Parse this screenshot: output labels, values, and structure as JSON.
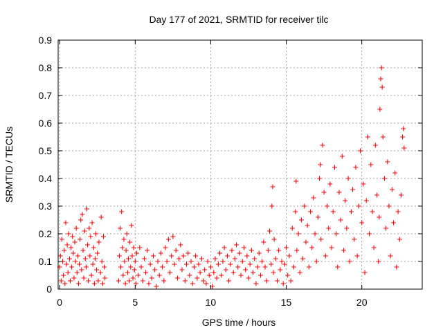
{
  "chart_data": {
    "type": "scatter",
    "title": "Day 177 of 2021, SRMTID for receiver tilc",
    "xlabel": "GPS time / hours",
    "ylabel": "SRMTID / TECUs",
    "xlim": [
      -0.1,
      24.0
    ],
    "ylim": [
      0,
      0.9
    ],
    "xticks": [
      0,
      5,
      10,
      15,
      20
    ],
    "xtick_labels": [
      "0",
      "5",
      "10",
      "15",
      "20"
    ],
    "yticks": [
      0,
      0.1,
      0.2,
      0.3,
      0.4,
      0.5,
      0.6,
      0.7,
      0.8,
      0.9
    ],
    "ytick_labels": [
      "0",
      "0.1",
      "0.2",
      "0.3",
      "0.4",
      "0.5",
      "0.6",
      "0.7",
      "0.8",
      "0.9"
    ],
    "grid": true,
    "marker": "+",
    "color": "#ff0000",
    "series": [
      {
        "points": [
          [
            0.0,
            0.08
          ],
          [
            0.05,
            0.12
          ],
          [
            0.1,
            0.03
          ],
          [
            0.15,
            0.18
          ],
          [
            0.2,
            0.1
          ],
          [
            0.25,
            0.05
          ],
          [
            0.3,
            0.14
          ],
          [
            0.35,
            0.02
          ],
          [
            0.4,
            0.24
          ],
          [
            0.45,
            0.09
          ],
          [
            0.5,
            0.16
          ],
          [
            0.55,
            0.06
          ],
          [
            0.6,
            0.2
          ],
          [
            0.65,
            0.11
          ],
          [
            0.7,
            0.03
          ],
          [
            0.75,
            0.15
          ],
          [
            0.8,
            0.08
          ],
          [
            0.85,
            0.19
          ],
          [
            0.9,
            0.13
          ],
          [
            0.95,
            0.04
          ],
          [
            1.0,
            0.17
          ],
          [
            1.05,
            0.1
          ],
          [
            1.1,
            0.22
          ],
          [
            1.15,
            0.06
          ],
          [
            1.2,
            0.12
          ],
          [
            1.25,
            0.02
          ],
          [
            1.3,
            0.09
          ],
          [
            1.35,
            0.18
          ],
          [
            1.4,
            0.25
          ],
          [
            1.45,
            0.07
          ],
          [
            1.5,
            0.27
          ],
          [
            1.55,
            0.14
          ],
          [
            1.6,
            0.04
          ],
          [
            1.65,
            0.21
          ],
          [
            1.7,
            0.11
          ],
          [
            1.75,
            0.08
          ],
          [
            1.8,
            0.29
          ],
          [
            1.85,
            0.16
          ],
          [
            1.9,
            0.03
          ],
          [
            1.95,
            0.22
          ],
          [
            2.0,
            0.12
          ],
          [
            2.05,
            0.19
          ],
          [
            2.1,
            0.05
          ],
          [
            2.15,
            0.24
          ],
          [
            2.2,
            0.09
          ],
          [
            2.25,
            0.15
          ],
          [
            2.3,
            0.02
          ],
          [
            2.35,
            0.11
          ],
          [
            2.4,
            0.2
          ],
          [
            2.45,
            0.07
          ],
          [
            2.5,
            0.13
          ],
          [
            2.55,
            0.03
          ],
          [
            2.6,
            0.17
          ],
          [
            2.7,
            0.06
          ],
          [
            2.75,
            0.26
          ],
          [
            2.8,
            0.1
          ],
          [
            2.85,
            0.02
          ],
          [
            2.9,
            0.19
          ],
          [
            2.95,
            0.08
          ],
          [
            3.0,
            0.04
          ],
          [
            3.9,
            0.03
          ],
          [
            3.95,
            0.12
          ],
          [
            4.0,
            0.22
          ],
          [
            4.05,
            0.08
          ],
          [
            4.1,
            0.28
          ],
          [
            4.15,
            0.15
          ],
          [
            4.2,
            0.05
          ],
          [
            4.25,
            0.18
          ],
          [
            4.3,
            0.1
          ],
          [
            4.35,
            0.02
          ],
          [
            4.4,
            0.14
          ],
          [
            4.45,
            0.2
          ],
          [
            4.5,
            0.06
          ],
          [
            4.55,
            0.11
          ],
          [
            4.6,
            0.03
          ],
          [
            4.65,
            0.17
          ],
          [
            4.7,
            0.08
          ],
          [
            4.75,
            0.23
          ],
          [
            4.8,
            0.12
          ],
          [
            4.85,
            0.04
          ],
          [
            4.9,
            0.15
          ],
          [
            4.95,
            0.07
          ],
          [
            5.0,
            0.1
          ],
          [
            5.05,
            0.02
          ],
          [
            5.1,
            0.13
          ],
          [
            5.2,
            0.05
          ],
          [
            5.3,
            0.15
          ],
          [
            5.4,
            0.08
          ],
          [
            5.5,
            0.03
          ],
          [
            5.6,
            0.11
          ],
          [
            5.7,
            0.06
          ],
          [
            5.8,
            0.14
          ],
          [
            5.9,
            0.02
          ],
          [
            6.0,
            0.09
          ],
          [
            6.1,
            0.04
          ],
          [
            6.2,
            0.12
          ],
          [
            6.3,
            0.07
          ],
          [
            6.4,
            0.01
          ],
          [
            6.5,
            0.1
          ],
          [
            6.6,
            0.05
          ],
          [
            6.7,
            0.13
          ],
          [
            6.8,
            0.08
          ],
          [
            6.9,
            0.03
          ],
          [
            7.0,
            0.15
          ],
          [
            7.1,
            0.1
          ],
          [
            7.2,
            0.18
          ],
          [
            7.3,
            0.06
          ],
          [
            7.4,
            0.12
          ],
          [
            7.5,
            0.19
          ],
          [
            7.6,
            0.09
          ],
          [
            7.7,
            0.14
          ],
          [
            7.8,
            0.04
          ],
          [
            7.9,
            0.11
          ],
          [
            8.0,
            0.16
          ],
          [
            8.1,
            0.07
          ],
          [
            8.2,
            0.12
          ],
          [
            8.3,
            0.03
          ],
          [
            8.4,
            0.09
          ],
          [
            8.5,
            0.13
          ],
          [
            8.6,
            0.05
          ],
          [
            8.7,
            0.1
          ],
          [
            8.8,
            0.02
          ],
          [
            8.9,
            0.08
          ],
          [
            9.0,
            0.12
          ],
          [
            9.1,
            0.04
          ],
          [
            9.2,
            0.09
          ],
          [
            9.3,
            0.06
          ],
          [
            9.4,
            0.11
          ],
          [
            9.5,
            0.03
          ],
          [
            9.6,
            0.07
          ],
          [
            9.7,
            0.02
          ],
          [
            9.8,
            0.1
          ],
          [
            9.9,
            0.05
          ],
          [
            10.0,
            0.08
          ],
          [
            10.1,
            0.01
          ],
          [
            10.2,
            0.06
          ],
          [
            10.3,
            0.11
          ],
          [
            10.4,
            0.04
          ],
          [
            10.5,
            0.09
          ],
          [
            10.6,
            0.13
          ],
          [
            10.7,
            0.05
          ],
          [
            10.8,
            0.1
          ],
          [
            10.9,
            0.15
          ],
          [
            11.0,
            0.07
          ],
          [
            11.1,
            0.12
          ],
          [
            11.2,
            0.03
          ],
          [
            11.3,
            0.09
          ],
          [
            11.4,
            0.14
          ],
          [
            11.5,
            0.06
          ],
          [
            11.6,
            0.11
          ],
          [
            11.7,
            0.16
          ],
          [
            11.8,
            0.08
          ],
          [
            11.9,
            0.13
          ],
          [
            12.0,
            0.05
          ],
          [
            12.1,
            0.1
          ],
          [
            12.2,
            0.15
          ],
          [
            12.3,
            0.07
          ],
          [
            12.4,
            0.12
          ],
          [
            12.5,
            0.04
          ],
          [
            12.6,
            0.09
          ],
          [
            12.7,
            0.14
          ],
          [
            12.8,
            0.06
          ],
          [
            12.9,
            0.11
          ],
          [
            13.0,
            0.02
          ],
          [
            13.1,
            0.08
          ],
          [
            13.2,
            0.13
          ],
          [
            13.3,
            0.05
          ],
          [
            13.4,
            0.1
          ],
          [
            13.5,
            0.17
          ],
          [
            13.6,
            0.08
          ],
          [
            13.7,
            0.03
          ],
          [
            13.8,
            0.14
          ],
          [
            13.9,
            0.21
          ],
          [
            14.0,
            0.09
          ],
          [
            14.05,
            0.3
          ],
          [
            14.1,
            0.37
          ],
          [
            14.15,
            0.06
          ],
          [
            14.2,
            0.18
          ],
          [
            14.3,
            0.11
          ],
          [
            14.4,
            0.03
          ],
          [
            14.5,
            0.14
          ],
          [
            14.6,
            0.07
          ],
          [
            14.7,
            0.1
          ],
          [
            14.8,
            0.02
          ],
          [
            14.9,
            0.09
          ],
          [
            15.0,
            0.15
          ],
          [
            15.1,
            0.05
          ],
          [
            15.2,
            0.12
          ],
          [
            15.3,
            0.03
          ],
          [
            15.4,
            0.22
          ],
          [
            15.5,
            0.08
          ],
          [
            15.6,
            0.28
          ],
          [
            15.65,
            0.39
          ],
          [
            15.7,
            0.14
          ],
          [
            15.8,
            0.2
          ],
          [
            15.9,
            0.06
          ],
          [
            16.0,
            0.25
          ],
          [
            16.1,
            0.11
          ],
          [
            16.2,
            0.3
          ],
          [
            16.3,
            0.17
          ],
          [
            16.4,
            0.23
          ],
          [
            16.5,
            0.08
          ],
          [
            16.6,
            0.28
          ],
          [
            16.7,
            0.15
          ],
          [
            16.8,
            0.33
          ],
          [
            16.9,
            0.2
          ],
          [
            17.0,
            0.1
          ],
          [
            17.1,
            0.26
          ],
          [
            17.2,
            0.4
          ],
          [
            17.25,
            0.45
          ],
          [
            17.3,
            0.18
          ],
          [
            17.4,
            0.52
          ],
          [
            17.5,
            0.35
          ],
          [
            17.6,
            0.12
          ],
          [
            17.7,
            0.3
          ],
          [
            17.8,
            0.22
          ],
          [
            17.9,
            0.38
          ],
          [
            18.0,
            0.15
          ],
          [
            18.1,
            0.28
          ],
          [
            18.2,
            0.44
          ],
          [
            18.3,
            0.2
          ],
          [
            18.4,
            0.08
          ],
          [
            18.5,
            0.35
          ],
          [
            18.6,
            0.25
          ],
          [
            18.7,
            0.48
          ],
          [
            18.8,
            0.14
          ],
          [
            18.9,
            0.32
          ],
          [
            19.0,
            0.22
          ],
          [
            19.1,
            0.4
          ],
          [
            19.2,
            0.1
          ],
          [
            19.3,
            0.28
          ],
          [
            19.4,
            0.36
          ],
          [
            19.5,
            0.18
          ],
          [
            19.6,
            0.44
          ],
          [
            19.7,
            0.12
          ],
          [
            19.8,
            0.3
          ],
          [
            19.9,
            0.5
          ],
          [
            20.0,
            0.24
          ],
          [
            20.1,
            0.38
          ],
          [
            20.2,
            0.06
          ],
          [
            20.3,
            0.32
          ],
          [
            20.4,
            0.55
          ],
          [
            20.5,
            0.2
          ],
          [
            20.6,
            0.45
          ],
          [
            20.7,
            0.28
          ],
          [
            20.8,
            0.15
          ],
          [
            20.9,
            0.52
          ],
          [
            21.0,
            0.34
          ],
          [
            21.1,
            0.1
          ],
          [
            21.15,
            0.26
          ],
          [
            21.2,
            0.65
          ],
          [
            21.25,
            0.76
          ],
          [
            21.3,
            0.8
          ],
          [
            21.35,
            0.73
          ],
          [
            21.4,
            0.55
          ],
          [
            21.5,
            0.4
          ],
          [
            21.6,
            0.22
          ],
          [
            21.7,
            0.46
          ],
          [
            21.8,
            0.3
          ],
          [
            21.9,
            0.12
          ],
          [
            22.0,
            0.36
          ],
          [
            22.1,
            0.24
          ],
          [
            22.2,
            0.42
          ],
          [
            22.3,
            0.08
          ],
          [
            22.4,
            0.28
          ],
          [
            22.5,
            0.18
          ],
          [
            22.6,
            0.34
          ],
          [
            22.7,
            0.55
          ],
          [
            22.75,
            0.58
          ],
          [
            22.8,
            0.51
          ]
        ]
      }
    ]
  }
}
